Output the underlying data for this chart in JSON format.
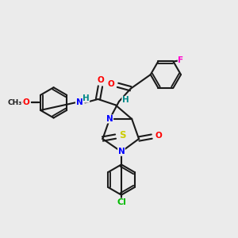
{
  "bg_color": "#ebebeb",
  "bond_color": "#1a1a1a",
  "bond_width": 1.5,
  "atom_colors": {
    "N": "#0000ff",
    "O": "#ff0000",
    "S": "#cccc00",
    "F": "#ff00cc",
    "Cl": "#00bb00",
    "H": "#008888",
    "C": "#1a1a1a"
  },
  "font_size": 7.5,
  "fig_size": [
    3.0,
    3.0
  ],
  "dpi": 100
}
